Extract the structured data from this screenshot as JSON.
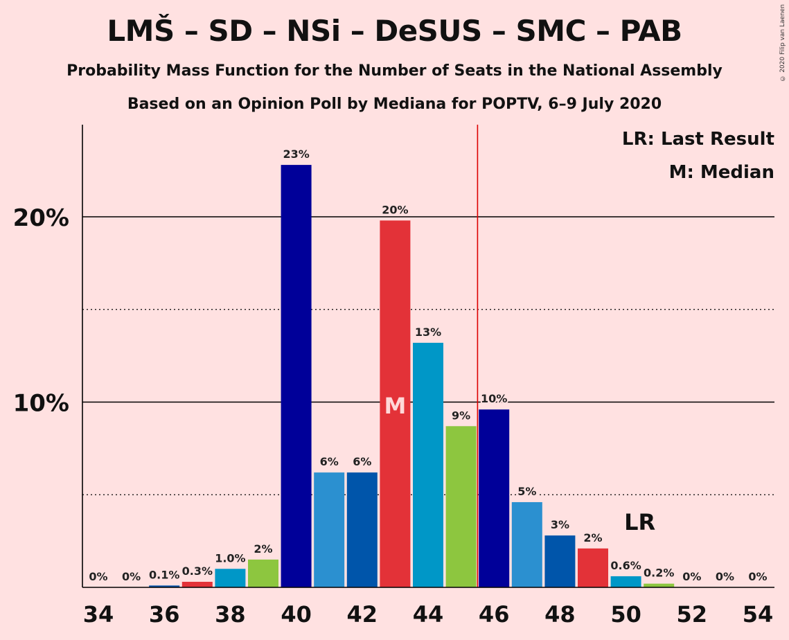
{
  "title": "LMŠ – SD – NSi – DeSUS – SMC – PAB",
  "subtitle_1": "Probability Mass Function for the Number of Seats in the National Assembly",
  "subtitle_2": "Based on an Opinion Poll by Mediana for POPTV, 6–9 July 2020",
  "copyright": "© 2020 Filip van Laenen",
  "legend": {
    "last_result": "LR: Last Result",
    "median": "M: Median"
  },
  "markers": {
    "median_label": "M",
    "last_result_label": "LR"
  },
  "chart_data": {
    "type": "bar",
    "x": [
      34,
      35,
      36,
      37,
      38,
      39,
      40,
      41,
      42,
      43,
      44,
      45,
      46,
      47,
      48,
      49,
      50,
      51,
      52,
      53,
      54
    ],
    "values": [
      0,
      0,
      0.1,
      0.3,
      1.0,
      1.5,
      22.8,
      6.2,
      6.2,
      19.8,
      13.2,
      8.7,
      9.6,
      4.6,
      2.8,
      2.1,
      0.6,
      0.2,
      0,
      0,
      0
    ],
    "data_labels": [
      "0%",
      "0%",
      "0.1%",
      "0.3%",
      "1.0%",
      "2%",
      "23%",
      "6%",
      "6%",
      "20%",
      "13%",
      "9%",
      "10%",
      "5%",
      "3%",
      "2%",
      "0.6%",
      "0.2%",
      "0%",
      "0%",
      "0%"
    ],
    "colors": [
      "#000099",
      "#2b90d0",
      "#0055aa",
      "#e33238",
      "#0097c7",
      "#8dc63f"
    ],
    "x_ticks": [
      34,
      36,
      38,
      40,
      42,
      44,
      46,
      48,
      50,
      52,
      54
    ],
    "x_tick_labels": [
      "34",
      "36",
      "38",
      "40",
      "42",
      "44",
      "46",
      "48",
      "50",
      "52",
      "54"
    ],
    "y_ticks_major": [
      10,
      20
    ],
    "y_tick_labels": [
      "10%",
      "20%"
    ],
    "y_ticks_minor": [
      5,
      15
    ],
    "ylim": [
      0,
      25
    ],
    "median_seat": 43,
    "last_result_seat": 50,
    "majority_line_x": 45.5,
    "majority_line_color": "#dd0000",
    "grid": true
  }
}
